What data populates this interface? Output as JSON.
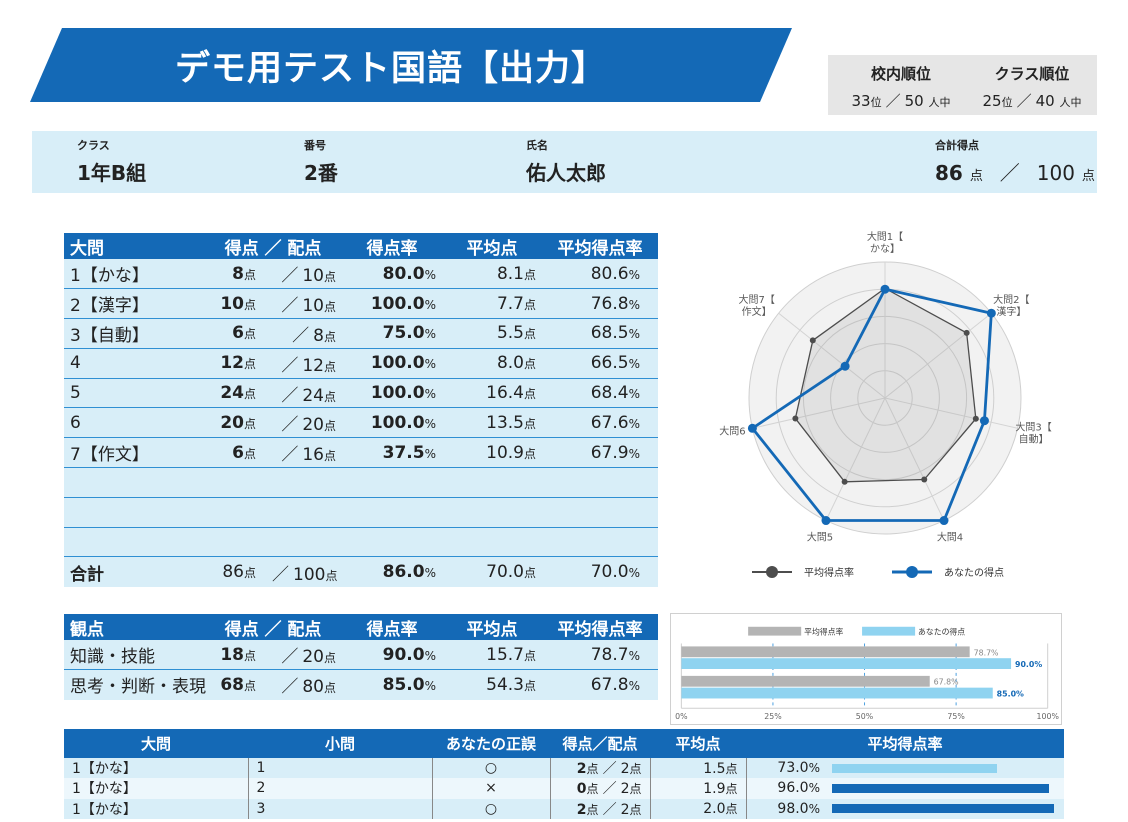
{
  "title": "デモ用テスト国語【出力】",
  "ranking": {
    "school": {
      "label": "校内順位",
      "rank": "33",
      "rank_unit": "位",
      "slash": "／",
      "total": "50",
      "total_unit": "人中"
    },
    "class": {
      "label": "クラス順位",
      "rank": "25",
      "rank_unit": "位",
      "slash": "／",
      "total": "40",
      "total_unit": "人中"
    }
  },
  "student": {
    "class_label": "クラス",
    "class_value": "1年B組",
    "number_label": "番号",
    "number_value": "2番",
    "name_label": "氏名",
    "name_value": "佑人太郎",
    "total_label": "合計得点",
    "total_score": "86",
    "total_unit": "点",
    "slash": "／",
    "total_max": "100",
    "total_max_unit": "点"
  },
  "units": {
    "pt": "点",
    "pct": "%",
    "slash": "／"
  },
  "question_table": {
    "headers": {
      "name": "大問",
      "score": "得点 ／ 配点",
      "rate": "得点率",
      "avg": "平均点",
      "avg_rate": "平均得点率"
    },
    "rows": [
      {
        "name": "1【かな】",
        "score": "8",
        "max": "10",
        "rate": "80.0",
        "avg": "8.1",
        "avg_rate": "80.6"
      },
      {
        "name": "2【漢字】",
        "score": "10",
        "max": "10",
        "rate": "100.0",
        "avg": "7.7",
        "avg_rate": "76.8"
      },
      {
        "name": "3【自動】",
        "score": "6",
        "max": "8",
        "rate": "75.0",
        "avg": "5.5",
        "avg_rate": "68.5"
      },
      {
        "name": "4",
        "score": "12",
        "max": "12",
        "rate": "100.0",
        "avg": "8.0",
        "avg_rate": "66.5"
      },
      {
        "name": "5",
        "score": "24",
        "max": "24",
        "rate": "100.0",
        "avg": "16.4",
        "avg_rate": "68.4"
      },
      {
        "name": "6",
        "score": "20",
        "max": "20",
        "rate": "100.0",
        "avg": "13.5",
        "avg_rate": "67.6"
      },
      {
        "name": "7【作文】",
        "score": "6",
        "max": "16",
        "rate": "37.5",
        "avg": "10.9",
        "avg_rate": "67.9"
      }
    ],
    "total": {
      "name": "合計",
      "score": "86",
      "max": "100",
      "rate": "86.0",
      "avg": "70.0",
      "avg_rate": "70.0"
    }
  },
  "viewpoint_table": {
    "headers": {
      "name": "観点",
      "score": "得点 ／ 配点",
      "rate": "得点率",
      "avg": "平均点",
      "avg_rate": "平均得点率"
    },
    "rows": [
      {
        "name": "知識・技能",
        "score": "18",
        "max": "20",
        "rate": "90.0",
        "avg": "15.7",
        "avg_rate": "78.7"
      },
      {
        "name": "思考・判断・表現",
        "score": "68",
        "max": "80",
        "rate": "85.0",
        "avg": "54.3",
        "avg_rate": "67.8"
      }
    ]
  },
  "chart_data": [
    {
      "type": "radar",
      "categories": [
        "大問1【かな】",
        "大問2【漢字】",
        "大問3【自動】",
        "大問4",
        "大問5",
        "大問6",
        "大問7【作文】"
      ],
      "series": [
        {
          "name": "平均得点率",
          "values": [
            80.6,
            76.8,
            68.5,
            66.5,
            68.4,
            67.6,
            67.9
          ],
          "color": "#4d4d4d"
        },
        {
          "name": "あなたの得点",
          "values": [
            80.0,
            100.0,
            75.0,
            100.0,
            100.0,
            100.0,
            37.5
          ],
          "color": "#1469b6"
        }
      ],
      "range": [
        0,
        100
      ],
      "legend": "bottom"
    },
    {
      "type": "bar",
      "orientation": "horizontal",
      "categories": [
        "知識・技能",
        "思考・判断・表現"
      ],
      "series": [
        {
          "name": "平均得点率",
          "values": [
            78.7,
            67.8
          ],
          "labels": [
            "78.7%",
            "67.8%"
          ],
          "color": "#b4b4b4"
        },
        {
          "name": "あなたの得点",
          "values": [
            90.0,
            85.0
          ],
          "labels": [
            "90.0%",
            "85.0%"
          ],
          "color": "#8fd3f0"
        }
      ],
      "xlim": [
        0,
        100
      ],
      "ticks": [
        "0%",
        "25%",
        "50%",
        "75%",
        "100%"
      ],
      "legend": "top"
    }
  ],
  "detail_table": {
    "headers": {
      "q": "大問",
      "sub": "小問",
      "result": "あなたの正誤",
      "score": "得点／配点",
      "avg": "平均点",
      "avg_rate": "平均得点率"
    },
    "rows": [
      {
        "q": "1【かな】",
        "sub": "1",
        "result": "○",
        "score": "2",
        "max": "2",
        "avg": "1.5",
        "avg_rate": "73.0",
        "avg_rate_value": 73.0,
        "bar_color": "#8fd3f0"
      },
      {
        "q": "1【かな】",
        "sub": "2",
        "result": "×",
        "score": "0",
        "max": "2",
        "avg": "1.9",
        "avg_rate": "96.0",
        "avg_rate_value": 96.0,
        "bar_color": "#1469b6"
      },
      {
        "q": "1【かな】",
        "sub": "3",
        "result": "○",
        "score": "2",
        "max": "2",
        "avg": "2.0",
        "avg_rate": "98.0",
        "avg_rate_value": 98.0,
        "bar_color": "#1469b6"
      }
    ]
  }
}
